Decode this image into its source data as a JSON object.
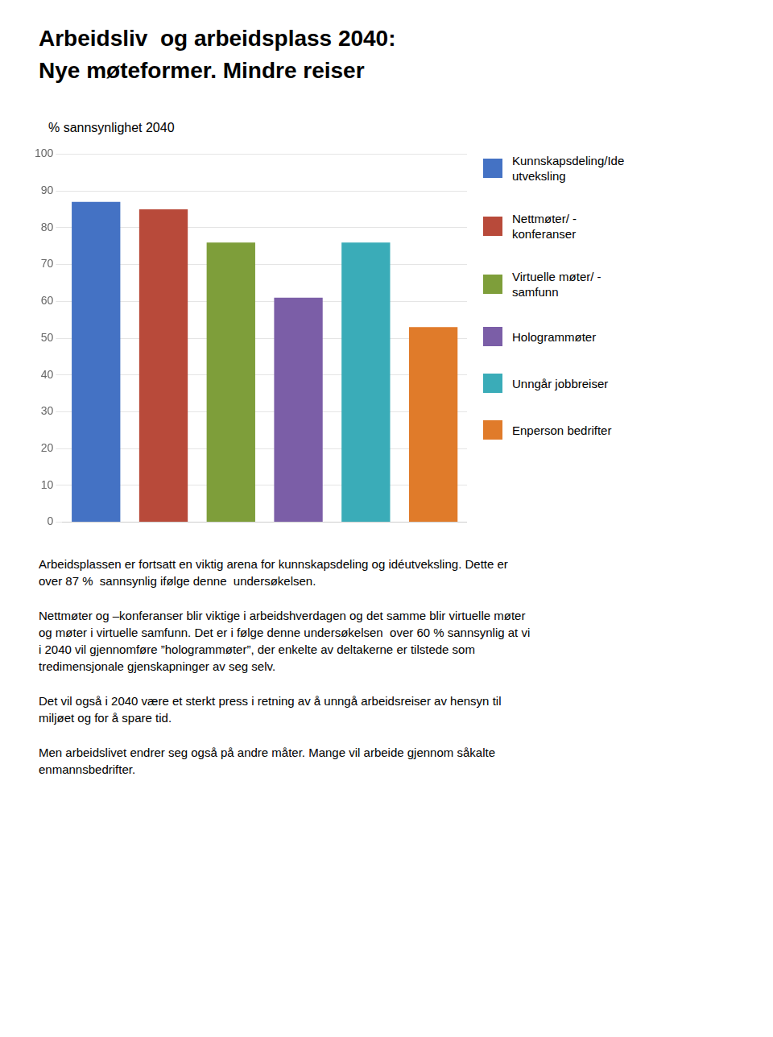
{
  "chart_data": {
    "type": "bar",
    "title": [
      "Arbeidsliv  og arbeidsplass 2040:",
      "Nye møteformer. Mindre reiser"
    ],
    "y_label": "% sannsynlighet 2040",
    "categories": [
      "Kunnskapsdeling/Ide\nutveksling",
      "Nettmøter/ -\nkonferanser",
      "Virtuelle møter/ -\nsamfunn",
      "Hologrammøter",
      "Unngår jobbreiser",
      "Enperson bedrifter"
    ],
    "values": [
      87,
      85,
      76,
      61,
      76,
      53
    ],
    "colors": [
      "#4472C4",
      "#B84A3A",
      "#7E9E3A",
      "#7B5EA7",
      "#3AACB8",
      "#E07B2A"
    ],
    "ylim": [
      0,
      100
    ],
    "yticks": [
      0,
      10,
      20,
      30,
      40,
      50,
      60,
      70,
      80,
      90,
      100
    ],
    "grid": true,
    "legend": "right",
    "tick_labels": "y",
    "annotations": [
      "Arbeidsplassen er fortsatt en viktig arena for kunnskapsdeling og idéutveksling. Dette er\nover 87 %  sannsynlig ifølge denne  undersøkelsen.",
      "Nettmøter og –konferanser blir viktige i arbeidshverdagen og det samme blir virtuelle møter\nog møter i virtuelle samfunn. Det er i følge denne undersøkelsen  over 60 % sannsynlig at vi\ni 2040 vil gjennomføre ”hologrammøter”, der enkelte av deltakerne er tilstede som\ntredimensjonale gjenskapninger av seg selv.",
      "Det vil også i 2040 være et sterkt press i retning av å unngå arbeidsreiser av hensyn til\nmiljøet og for å spare tid.",
      "Men arbeidslivet endrer seg også på andre måter. Mange vil arbeide gjennom såkalte\nenmannsbedrifter."
    ]
  }
}
